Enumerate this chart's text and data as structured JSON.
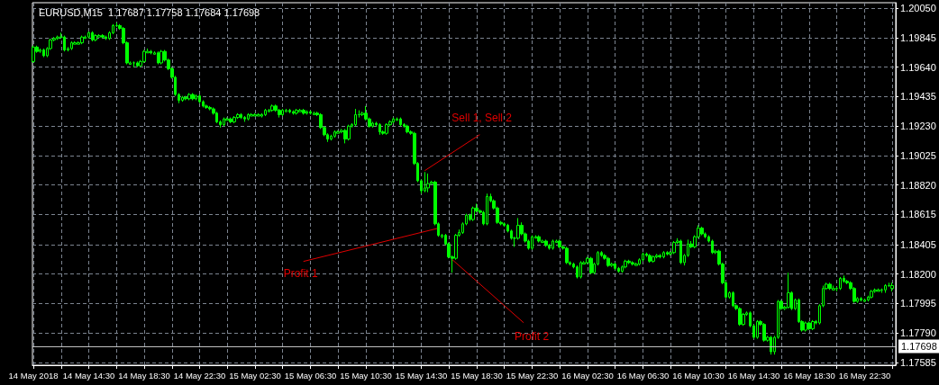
{
  "chart_data": {
    "type": "candlestick",
    "title": "EURUSD,M15  1.17687 1.17758 1.17684 1.17698",
    "color": "#00ff00",
    "grid": true,
    "xlim": [
      "2018-05-14T10:26",
      "2018-05-17T00:45"
    ],
    "xticks": [
      {
        "value": "2018-05-14T10:30",
        "label": "14 May 2018"
      },
      {
        "value": "2018-05-14T12:30",
        "label": null
      },
      {
        "value": "2018-05-14T14:30",
        "label": "14 May 14:30"
      },
      {
        "value": "2018-05-14T16:30",
        "label": null
      },
      {
        "value": "2018-05-14T18:30",
        "label": "14 May 18:30"
      },
      {
        "value": "2018-05-14T20:30",
        "label": null
      },
      {
        "value": "2018-05-14T22:30",
        "label": "14 May 22:30"
      },
      {
        "value": "2018-05-15T00:30",
        "label": null
      },
      {
        "value": "2018-05-15T02:30",
        "label": "15 May 02:30"
      },
      {
        "value": "2018-05-15T04:30",
        "label": null
      },
      {
        "value": "2018-05-15T06:30",
        "label": "15 May 06:30"
      },
      {
        "value": "2018-05-15T08:30",
        "label": null
      },
      {
        "value": "2018-05-15T10:30",
        "label": "15 May 10:30"
      },
      {
        "value": "2018-05-15T12:30",
        "label": null
      },
      {
        "value": "2018-05-15T14:30",
        "label": "15 May 14:30"
      },
      {
        "value": "2018-05-15T16:30",
        "label": null
      },
      {
        "value": "2018-05-15T18:30",
        "label": "15 May 18:30"
      },
      {
        "value": "2018-05-15T20:30",
        "label": null
      },
      {
        "value": "2018-05-15T22:30",
        "label": "15 May 22:30"
      },
      {
        "value": "2018-05-16T00:30",
        "label": null
      },
      {
        "value": "2018-05-16T02:30",
        "label": "16 May 02:30"
      },
      {
        "value": "2018-05-16T04:30",
        "label": null
      },
      {
        "value": "2018-05-16T06:30",
        "label": "16 May 06:30"
      },
      {
        "value": "2018-05-16T08:30",
        "label": null
      },
      {
        "value": "2018-05-16T10:30",
        "label": "16 May 10:30"
      },
      {
        "value": "2018-05-16T12:30",
        "label": null
      },
      {
        "value": "2018-05-16T14:30",
        "label": "16 May 14:30"
      },
      {
        "value": "2018-05-16T16:30",
        "label": null
      },
      {
        "value": "2018-05-16T18:30",
        "label": "16 May 18:30"
      },
      {
        "value": "2018-05-16T20:30",
        "label": null
      },
      {
        "value": "2018-05-16T22:30",
        "label": "16 May 22:30"
      },
      {
        "value": "2018-05-17T00:30",
        "label": null
      }
    ],
    "ylim": [
      1.17566,
      1.20089
    ],
    "yticks": [
      {
        "value": 1.2005,
        "label": "1.20050"
      },
      {
        "value": 1.19845,
        "label": "1.19845"
      },
      {
        "value": 1.1964,
        "label": "1.19640"
      },
      {
        "value": 1.19435,
        "label": "1.19435"
      },
      {
        "value": 1.1923,
        "label": "1.19230"
      },
      {
        "value": 1.19025,
        "label": "1.19025"
      },
      {
        "value": 1.1882,
        "label": "1.18820"
      },
      {
        "value": 1.18615,
        "label": "1.18615"
      },
      {
        "value": 1.18405,
        "label": "1.18405"
      },
      {
        "value": 1.182,
        "label": "1.18200"
      },
      {
        "value": 1.17995,
        "label": "1.17995"
      },
      {
        "value": 1.1779,
        "label": "1.17790"
      },
      {
        "value": 1.17585,
        "label": "1.17585"
      }
    ],
    "ref_lines": [
      {
        "axis": "y",
        "value": 1.17698,
        "label": "1.17698",
        "color": "#c0c0c0"
      }
    ],
    "annotations": [
      {
        "text": "Sell 1, Sell 2",
        "x": "2018-05-15T14:45",
        "y": 1.1892
      },
      {
        "text": "Profit 1",
        "x": "2018-05-15T15:45",
        "y": 1.1852
      },
      {
        "text": "Profit 2",
        "x": "2018-05-15T16:45",
        "y": 1.183
      }
    ],
    "x": [
      "2018-05-14T10:30",
      "2018-05-14T10:45",
      "2018-05-14T11:00",
      "2018-05-14T11:15",
      "2018-05-14T11:30",
      "2018-05-14T11:45",
      "2018-05-14T12:00",
      "2018-05-14T12:15",
      "2018-05-14T12:30",
      "2018-05-14T12:45",
      "2018-05-14T13:00",
      "2018-05-14T13:15",
      "2018-05-14T13:30",
      "2018-05-14T13:45",
      "2018-05-14T14:00",
      "2018-05-14T14:15",
      "2018-05-14T14:30",
      "2018-05-14T14:45",
      "2018-05-14T15:00",
      "2018-05-14T15:15",
      "2018-05-14T15:30",
      "2018-05-14T15:45",
      "2018-05-14T16:00",
      "2018-05-14T16:15",
      "2018-05-14T16:30",
      "2018-05-14T16:45",
      "2018-05-14T17:00",
      "2018-05-14T17:15",
      "2018-05-14T17:30",
      "2018-05-14T17:45",
      "2018-05-14T18:00",
      "2018-05-14T18:15",
      "2018-05-14T18:30",
      "2018-05-14T18:45",
      "2018-05-14T19:00",
      "2018-05-14T19:15",
      "2018-05-14T19:30",
      "2018-05-14T19:45",
      "2018-05-14T20:00",
      "2018-05-14T20:15",
      "2018-05-14T20:30",
      "2018-05-14T20:45",
      "2018-05-14T21:00",
      "2018-05-14T21:15",
      "2018-05-14T21:30",
      "2018-05-14T21:45",
      "2018-05-14T22:00",
      "2018-05-14T22:15",
      "2018-05-14T22:30",
      "2018-05-14T22:45",
      "2018-05-14T23:00",
      "2018-05-14T23:15",
      "2018-05-14T23:30",
      "2018-05-14T23:45",
      "2018-05-15T00:00",
      "2018-05-15T00:15",
      "2018-05-15T00:30",
      "2018-05-15T00:45",
      "2018-05-15T01:00",
      "2018-05-15T01:15",
      "2018-05-15T01:30",
      "2018-05-15T01:45",
      "2018-05-15T02:00",
      "2018-05-15T02:15",
      "2018-05-15T02:30",
      "2018-05-15T02:45",
      "2018-05-15T03:00",
      "2018-05-15T03:15",
      "2018-05-15T03:30",
      "2018-05-15T03:45",
      "2018-05-15T04:00",
      "2018-05-15T04:15",
      "2018-05-15T04:30",
      "2018-05-15T04:45",
      "2018-05-15T05:00",
      "2018-05-15T05:15",
      "2018-05-15T05:30",
      "2018-05-15T05:45",
      "2018-05-15T06:00",
      "2018-05-15T06:15",
      "2018-05-15T06:30",
      "2018-05-15T06:45",
      "2018-05-15T07:00",
      "2018-05-15T07:15",
      "2018-05-15T07:30",
      "2018-05-15T07:45",
      "2018-05-15T08:00",
      "2018-05-15T08:15",
      "2018-05-15T08:30",
      "2018-05-15T08:45",
      "2018-05-15T09:00",
      "2018-05-15T09:15",
      "2018-05-15T09:30",
      "2018-05-15T09:45",
      "2018-05-15T10:00",
      "2018-05-15T10:15",
      "2018-05-15T10:30",
      "2018-05-15T10:45",
      "2018-05-15T11:00",
      "2018-05-15T11:15",
      "2018-05-15T11:30",
      "2018-05-15T11:45",
      "2018-05-15T12:00",
      "2018-05-15T12:15",
      "2018-05-15T12:30",
      "2018-05-15T12:45",
      "2018-05-15T13:00",
      "2018-05-15T13:15",
      "2018-05-15T13:30",
      "2018-05-15T13:45",
      "2018-05-15T14:00",
      "2018-05-15T14:15",
      "2018-05-15T14:30",
      "2018-05-15T14:45",
      "2018-05-15T15:00",
      "2018-05-15T15:15",
      "2018-05-15T15:30",
      "2018-05-15T15:45",
      "2018-05-15T16:00",
      "2018-05-15T16:15",
      "2018-05-15T16:30",
      "2018-05-15T16:45",
      "2018-05-15T17:00",
      "2018-05-15T17:15",
      "2018-05-15T17:30",
      "2018-05-15T17:45",
      "2018-05-15T18:00",
      "2018-05-15T18:15",
      "2018-05-15T18:30",
      "2018-05-15T18:45",
      "2018-05-15T19:00",
      "2018-05-15T19:15",
      "2018-05-15T19:30",
      "2018-05-15T19:45",
      "2018-05-15T20:00",
      "2018-05-15T20:15",
      "2018-05-15T20:30",
      "2018-05-15T20:45",
      "2018-05-15T21:00",
      "2018-05-15T21:15",
      "2018-05-15T21:30",
      "2018-05-15T21:45",
      "2018-05-15T22:00",
      "2018-05-15T22:15",
      "2018-05-15T22:30",
      "2018-05-15T22:45",
      "2018-05-15T23:00",
      "2018-05-15T23:15",
      "2018-05-15T23:30",
      "2018-05-15T23:45",
      "2018-05-16T00:00",
      "2018-05-16T00:15",
      "2018-05-16T00:30",
      "2018-05-16T00:45",
      "2018-05-16T01:00",
      "2018-05-16T01:15",
      "2018-05-16T01:30",
      "2018-05-16T01:45",
      "2018-05-16T02:00",
      "2018-05-16T02:15",
      "2018-05-16T02:30",
      "2018-05-16T02:45",
      "2018-05-16T03:00",
      "2018-05-16T03:15",
      "2018-05-16T03:30",
      "2018-05-16T03:45",
      "2018-05-16T04:00",
      "2018-05-16T04:15",
      "2018-05-16T04:30",
      "2018-05-16T04:45",
      "2018-05-16T05:00",
      "2018-05-16T05:15",
      "2018-05-16T05:30",
      "2018-05-16T05:45",
      "2018-05-16T06:00",
      "2018-05-16T06:15",
      "2018-05-16T06:30",
      "2018-05-16T06:45",
      "2018-05-16T07:00",
      "2018-05-16T07:15",
      "2018-05-16T07:30",
      "2018-05-16T07:45",
      "2018-05-16T08:00",
      "2018-05-16T08:15",
      "2018-05-16T08:30",
      "2018-05-16T08:45",
      "2018-05-16T09:00",
      "2018-05-16T09:15",
      "2018-05-16T09:30",
      "2018-05-16T09:45",
      "2018-05-16T10:00",
      "2018-05-16T10:15",
      "2018-05-16T10:30",
      "2018-05-16T10:45",
      "2018-05-16T11:00",
      "2018-05-16T11:15",
      "2018-05-16T11:30",
      "2018-05-16T11:45",
      "2018-05-16T12:00",
      "2018-05-16T12:15",
      "2018-05-16T12:30",
      "2018-05-16T12:45",
      "2018-05-16T13:00",
      "2018-05-16T13:15",
      "2018-05-16T13:30",
      "2018-05-16T13:45",
      "2018-05-16T14:00",
      "2018-05-16T14:15",
      "2018-05-16T14:30",
      "2018-05-16T14:45",
      "2018-05-16T15:00",
      "2018-05-16T15:15",
      "2018-05-16T15:30",
      "2018-05-16T15:45",
      "2018-05-16T16:00",
      "2018-05-16T16:15",
      "2018-05-16T16:30",
      "2018-05-16T16:45",
      "2018-05-16T17:00",
      "2018-05-16T17:15",
      "2018-05-16T17:30",
      "2018-05-16T17:45",
      "2018-05-16T18:00",
      "2018-05-16T18:15",
      "2018-05-16T18:30",
      "2018-05-16T18:45",
      "2018-05-16T19:00",
      "2018-05-16T19:15",
      "2018-05-16T19:30",
      "2018-05-16T19:45",
      "2018-05-16T20:00",
      "2018-05-16T20:15",
      "2018-05-16T20:30",
      "2018-05-16T20:45",
      "2018-05-16T21:00",
      "2018-05-16T21:15",
      "2018-05-16T21:30",
      "2018-05-16T21:45",
      "2018-05-16T22:00",
      "2018-05-16T22:15",
      "2018-05-16T22:30",
      "2018-05-16T22:45",
      "2018-05-16T23:00",
      "2018-05-16T23:15",
      "2018-05-16T23:30",
      "2018-05-16T23:45",
      "2018-05-17T00:00",
      "2018-05-17T00:15",
      "2018-05-17T00:30"
    ],
    "ohlc": [
      [
        1.1968,
        1.1979,
        1.1967,
        1.1978
      ],
      [
        1.1978,
        1.1979,
        1.1974,
        1.1975
      ],
      [
        1.1975,
        1.1977,
        1.1974,
        1.1976
      ],
      [
        1.1976,
        1.1977,
        1.1971,
        1.1972
      ],
      [
        1.1972,
        1.1978,
        1.1971,
        1.1977
      ],
      [
        1.1977,
        1.1984,
        1.1976,
        1.1983
      ],
      [
        1.1983,
        1.1985,
        1.1982,
        1.1984
      ],
      [
        1.1984,
        1.1986,
        1.1983,
        1.1985
      ],
      [
        1.1985,
        1.1988,
        1.1984,
        1.1985
      ],
      [
        1.1985,
        1.1986,
        1.1975,
        1.1976
      ],
      [
        1.1976,
        1.1978,
        1.1975,
        1.1977
      ],
      [
        1.1977,
        1.1982,
        1.1976,
        1.1981
      ],
      [
        1.198,
        1.1982,
        1.198,
        1.1981
      ],
      [
        1.198,
        1.1982,
        1.198,
        1.1981
      ],
      [
        1.1981,
        1.1986,
        1.198,
        1.1985
      ],
      [
        1.1984,
        1.1986,
        1.1984,
        1.1985
      ],
      [
        1.1985,
        1.1989,
        1.1984,
        1.1988
      ],
      [
        1.1988,
        1.1989,
        1.1982,
        1.1983
      ],
      [
        1.1983,
        1.1987,
        1.1982,
        1.1986
      ],
      [
        1.1985,
        1.1987,
        1.1985,
        1.1986
      ],
      [
        1.1986,
        1.1987,
        1.1984,
        1.1985
      ],
      [
        1.1985,
        1.1986,
        1.1983,
        1.1984
      ],
      [
        1.1984,
        1.1989,
        1.1983,
        1.1988
      ],
      [
        1.1988,
        1.1994,
        1.1987,
        1.1993
      ],
      [
        1.1993,
        1.1995,
        1.1992,
        1.1993
      ],
      [
        1.1993,
        1.1994,
        1.199,
        1.1991
      ],
      [
        1.1991,
        1.1992,
        1.198,
        1.1981
      ],
      [
        1.1981,
        1.1982,
        1.1966,
        1.1967
      ],
      [
        1.1966,
        1.1968,
        1.1966,
        1.1967
      ],
      [
        1.1967,
        1.1968,
        1.1964,
        1.1967
      ],
      [
        1.1967,
        1.1968,
        1.1964,
        1.1965
      ],
      [
        1.1965,
        1.1969,
        1.1964,
        1.1968
      ],
      [
        1.1968,
        1.1976,
        1.1967,
        1.1975
      ],
      [
        1.1974,
        1.1977,
        1.1974,
        1.1975
      ],
      [
        1.1975,
        1.1976,
        1.1973,
        1.1974
      ],
      [
        1.1973,
        1.1975,
        1.1973,
        1.1974
      ],
      [
        1.1974,
        1.1975,
        1.1966,
        1.1967
      ],
      [
        1.1967,
        1.1976,
        1.1966,
        1.1975
      ],
      [
        1.1975,
        1.1976,
        1.1968,
        1.1969
      ],
      [
        1.1969,
        1.197,
        1.1962,
        1.1963
      ],
      [
        1.1963,
        1.1964,
        1.1956,
        1.1957
      ],
      [
        1.1957,
        1.1958,
        1.1944,
        1.1945
      ],
      [
        1.1945,
        1.1946,
        1.1939,
        1.1941
      ],
      [
        1.1941,
        1.1944,
        1.194,
        1.1943
      ],
      [
        1.1943,
        1.1944,
        1.1941,
        1.1942
      ],
      [
        1.1942,
        1.1946,
        1.1941,
        1.1945
      ],
      [
        1.1945,
        1.1946,
        1.1941,
        1.1942
      ],
      [
        1.1942,
        1.1945,
        1.1941,
        1.1944
      ],
      [
        1.1944,
        1.1945,
        1.1939,
        1.194
      ],
      [
        1.194,
        1.1941,
        1.1936,
        1.1937
      ],
      [
        1.1937,
        1.1938,
        1.1935,
        1.1936
      ],
      [
        1.1936,
        1.1937,
        1.1934,
        1.1935
      ],
      [
        1.1935,
        1.1936,
        1.1931,
        1.1932
      ],
      [
        1.1932,
        1.1933,
        1.1925,
        1.1926
      ],
      [
        1.1926,
        1.1927,
        1.1922,
        1.1924
      ],
      [
        1.1924,
        1.1929,
        1.1923,
        1.1928
      ],
      [
        1.1927,
        1.1929,
        1.1927,
        1.1928
      ],
      [
        1.1928,
        1.1929,
        1.1925,
        1.1926
      ],
      [
        1.1926,
        1.193,
        1.1925,
        1.1929
      ],
      [
        1.1929,
        1.1932,
        1.1928,
        1.1931
      ],
      [
        1.1931,
        1.1932,
        1.1928,
        1.1929
      ],
      [
        1.1929,
        1.193,
        1.1926,
        1.1928
      ],
      [
        1.1928,
        1.1932,
        1.1927,
        1.1931
      ],
      [
        1.193,
        1.1932,
        1.193,
        1.1931
      ],
      [
        1.193,
        1.1932,
        1.193,
        1.1931
      ],
      [
        1.193,
        1.1932,
        1.193,
        1.1931
      ],
      [
        1.193,
        1.1932,
        1.1929,
        1.1931
      ],
      [
        1.1931,
        1.1935,
        1.193,
        1.1934
      ],
      [
        1.1933,
        1.1935,
        1.1933,
        1.1934
      ],
      [
        1.1934,
        1.1938,
        1.1933,
        1.1937
      ],
      [
        1.1937,
        1.1938,
        1.1933,
        1.1934
      ],
      [
        1.1934,
        1.1935,
        1.1929,
        1.1931
      ],
      [
        1.1931,
        1.1935,
        1.193,
        1.1934
      ],
      [
        1.1933,
        1.1935,
        1.1933,
        1.1934
      ],
      [
        1.1934,
        1.1935,
        1.1932,
        1.1933
      ],
      [
        1.1933,
        1.1934,
        1.1931,
        1.1932
      ],
      [
        1.1932,
        1.1935,
        1.1931,
        1.1934
      ],
      [
        1.1933,
        1.1935,
        1.1933,
        1.1934
      ],
      [
        1.1934,
        1.1935,
        1.1931,
        1.1932
      ],
      [
        1.1932,
        1.1934,
        1.1931,
        1.1933
      ],
      [
        1.1933,
        1.1934,
        1.1931,
        1.1932
      ],
      [
        1.1931,
        1.1933,
        1.1931,
        1.1932
      ],
      [
        1.1932,
        1.1933,
        1.193,
        1.1931
      ],
      [
        1.1931,
        1.1932,
        1.1921,
        1.1922
      ],
      [
        1.1922,
        1.1923,
        1.1916,
        1.1917
      ],
      [
        1.1917,
        1.1918,
        1.1912,
        1.1914
      ],
      [
        1.1914,
        1.1917,
        1.1913,
        1.1916
      ],
      [
        1.1916,
        1.192,
        1.1915,
        1.1919
      ],
      [
        1.1918,
        1.192,
        1.1918,
        1.1919
      ],
      [
        1.1919,
        1.1921,
        1.1918,
        1.192
      ],
      [
        1.192,
        1.1921,
        1.1911,
        1.1914
      ],
      [
        1.1914,
        1.1924,
        1.1913,
        1.1923
      ],
      [
        1.1923,
        1.1925,
        1.1922,
        1.1924
      ],
      [
        1.1924,
        1.1935,
        1.1923,
        1.1931
      ],
      [
        1.1931,
        1.1934,
        1.1929,
        1.1931
      ],
      [
        1.1931,
        1.1933,
        1.193,
        1.1932
      ],
      [
        1.1932,
        1.1937,
        1.1927,
        1.1928
      ],
      [
        1.1928,
        1.1929,
        1.1922,
        1.1923
      ],
      [
        1.1923,
        1.1926,
        1.1922,
        1.1925
      ],
      [
        1.1925,
        1.1926,
        1.1923,
        1.1924
      ],
      [
        1.1924,
        1.1925,
        1.1917,
        1.1919
      ],
      [
        1.1919,
        1.192,
        1.1917,
        1.1918
      ],
      [
        1.1918,
        1.1925,
        1.1917,
        1.1924
      ],
      [
        1.1924,
        1.1927,
        1.1923,
        1.1926
      ],
      [
        1.1926,
        1.1929,
        1.1925,
        1.1928
      ],
      [
        1.1927,
        1.1929,
        1.1927,
        1.1928
      ],
      [
        1.1928,
        1.1929,
        1.1923,
        1.1924
      ],
      [
        1.1924,
        1.1925,
        1.1922,
        1.1923
      ],
      [
        1.1923,
        1.1924,
        1.1918,
        1.1919
      ],
      [
        1.1919,
        1.192,
        1.1917,
        1.1918
      ],
      [
        1.1918,
        1.1919,
        1.1896,
        1.1897
      ],
      [
        1.1897,
        1.1898,
        1.1884,
        1.1885
      ],
      [
        1.1885,
        1.1886,
        1.1876,
        1.1878
      ],
      [
        1.1878,
        1.1891,
        1.1877,
        1.188
      ],
      [
        1.188,
        1.189,
        1.1877,
        1.1883
      ],
      [
        1.1883,
        1.1885,
        1.1882,
        1.1884
      ],
      [
        1.1884,
        1.1885,
        1.1854,
        1.1855
      ],
      [
        1.1855,
        1.1856,
        1.1846,
        1.1847
      ],
      [
        1.1846,
        1.1848,
        1.1845,
        1.1847
      ],
      [
        1.1847,
        1.1848,
        1.184,
        1.1841
      ],
      [
        1.1841,
        1.1842,
        1.1831,
        1.1832
      ],
      [
        1.1832,
        1.1833,
        1.1821,
        1.1831
      ],
      [
        1.1831,
        1.1848,
        1.183,
        1.1847
      ],
      [
        1.1847,
        1.1851,
        1.1846,
        1.1849
      ],
      [
        1.1849,
        1.1856,
        1.1848,
        1.1855
      ],
      [
        1.1855,
        1.1862,
        1.1854,
        1.1861
      ],
      [
        1.1861,
        1.1862,
        1.1857,
        1.1858
      ],
      [
        1.1858,
        1.1867,
        1.1857,
        1.1866
      ],
      [
        1.1866,
        1.1869,
        1.1863,
        1.1864
      ],
      [
        1.1864,
        1.1865,
        1.1862,
        1.1863
      ],
      [
        1.1863,
        1.1864,
        1.1854,
        1.1855
      ],
      [
        1.1855,
        1.1876,
        1.1854,
        1.1874
      ],
      [
        1.1874,
        1.1876,
        1.187,
        1.1871
      ],
      [
        1.1871,
        1.1872,
        1.1865,
        1.1866
      ],
      [
        1.1866,
        1.1867,
        1.1855,
        1.1856
      ],
      [
        1.1856,
        1.1857,
        1.1854,
        1.1855
      ],
      [
        1.1855,
        1.1856,
        1.1853,
        1.1854
      ],
      [
        1.1854,
        1.1855,
        1.1849,
        1.185
      ],
      [
        1.185,
        1.1851,
        1.1844,
        1.1845
      ],
      [
        1.1845,
        1.1846,
        1.1839,
        1.1845
      ],
      [
        1.1845,
        1.1859,
        1.1844,
        1.1854
      ],
      [
        1.1854,
        1.1856,
        1.1847,
        1.1848
      ],
      [
        1.1848,
        1.1849,
        1.1842,
        1.1843
      ],
      [
        1.1843,
        1.1844,
        1.1837,
        1.1838
      ],
      [
        1.1838,
        1.1847,
        1.1837,
        1.1846
      ],
      [
        1.1845,
        1.1847,
        1.1845,
        1.1846
      ],
      [
        1.1846,
        1.1847,
        1.1842,
        1.1843
      ],
      [
        1.1842,
        1.1844,
        1.1842,
        1.1843
      ],
      [
        1.1843,
        1.1844,
        1.1839,
        1.184
      ],
      [
        1.184,
        1.1841,
        1.1837,
        1.1838
      ],
      [
        1.1838,
        1.1844,
        1.1837,
        1.1843
      ],
      [
        1.1842,
        1.1844,
        1.1842,
        1.1843
      ],
      [
        1.1843,
        1.1844,
        1.1838,
        1.1839
      ],
      [
        1.1839,
        1.184,
        1.1837,
        1.1838
      ],
      [
        1.1838,
        1.1839,
        1.1827,
        1.1828
      ],
      [
        1.1828,
        1.1829,
        1.1826,
        1.1827
      ],
      [
        1.1827,
        1.1828,
        1.1824,
        1.1825
      ],
      [
        1.1825,
        1.1826,
        1.1817,
        1.1818
      ],
      [
        1.1818,
        1.1829,
        1.1817,
        1.1828
      ],
      [
        1.1827,
        1.1829,
        1.1827,
        1.1828
      ],
      [
        1.1828,
        1.1832,
        1.1827,
        1.1831
      ],
      [
        1.1831,
        1.1832,
        1.182,
        1.1821
      ],
      [
        1.1821,
        1.1828,
        1.182,
        1.1827
      ],
      [
        1.1827,
        1.1836,
        1.1826,
        1.1835
      ],
      [
        1.1835,
        1.1836,
        1.1832,
        1.1833
      ],
      [
        1.1833,
        1.1834,
        1.183,
        1.1831
      ],
      [
        1.1831,
        1.1832,
        1.1825,
        1.1826
      ],
      [
        1.1826,
        1.1828,
        1.1825,
        1.1827
      ],
      [
        1.1827,
        1.1828,
        1.1823,
        1.1824
      ],
      [
        1.1824,
        1.1825,
        1.1821,
        1.1822
      ],
      [
        1.1822,
        1.1826,
        1.1821,
        1.1825
      ],
      [
        1.1825,
        1.183,
        1.1824,
        1.1829
      ],
      [
        1.1829,
        1.183,
        1.1827,
        1.1828
      ],
      [
        1.1828,
        1.1829,
        1.1826,
        1.1827
      ],
      [
        1.1826,
        1.1828,
        1.1826,
        1.1827
      ],
      [
        1.1827,
        1.1831,
        1.1826,
        1.183
      ],
      [
        1.183,
        1.1835,
        1.1829,
        1.1834
      ],
      [
        1.1834,
        1.1835,
        1.1832,
        1.1833
      ],
      [
        1.1833,
        1.1834,
        1.1828,
        1.1829
      ],
      [
        1.1829,
        1.1833,
        1.1828,
        1.1832
      ],
      [
        1.1832,
        1.1834,
        1.1831,
        1.1833
      ],
      [
        1.1833,
        1.1834,
        1.1831,
        1.1832
      ],
      [
        1.1832,
        1.1836,
        1.1831,
        1.1835
      ],
      [
        1.1835,
        1.1836,
        1.1833,
        1.1834
      ],
      [
        1.1834,
        1.1836,
        1.1833,
        1.1835
      ],
      [
        1.1835,
        1.1843,
        1.1834,
        1.1842
      ],
      [
        1.1842,
        1.1845,
        1.1841,
        1.1843
      ],
      [
        1.1843,
        1.1844,
        1.1827,
        1.1828
      ],
      [
        1.1828,
        1.1834,
        1.1826,
        1.1833
      ],
      [
        1.1833,
        1.1844,
        1.1832,
        1.1841
      ],
      [
        1.1841,
        1.1843,
        1.1838,
        1.1839
      ],
      [
        1.1839,
        1.1847,
        1.1838,
        1.1846
      ],
      [
        1.1846,
        1.1854,
        1.1845,
        1.1852
      ],
      [
        1.1852,
        1.1853,
        1.1847,
        1.1848
      ],
      [
        1.1848,
        1.1849,
        1.1845,
        1.1846
      ],
      [
        1.1846,
        1.1847,
        1.1842,
        1.1843
      ],
      [
        1.1843,
        1.1844,
        1.1834,
        1.1835
      ],
      [
        1.1835,
        1.1837,
        1.1834,
        1.1836
      ],
      [
        1.1836,
        1.1837,
        1.1826,
        1.1827
      ],
      [
        1.1827,
        1.1828,
        1.1813,
        1.1814
      ],
      [
        1.1814,
        1.1815,
        1.1803,
        1.1804
      ],
      [
        1.1804,
        1.1808,
        1.1803,
        1.1807
      ],
      [
        1.1807,
        1.1808,
        1.1797,
        1.1798
      ],
      [
        1.1798,
        1.1799,
        1.1795,
        1.1796
      ],
      [
        1.1796,
        1.1797,
        1.1784,
        1.1785
      ],
      [
        1.1785,
        1.1793,
        1.1784,
        1.1792
      ],
      [
        1.1792,
        1.1794,
        1.1791,
        1.1793
      ],
      [
        1.1793,
        1.1794,
        1.1783,
        1.1784
      ],
      [
        1.1784,
        1.1785,
        1.1775,
        1.1776
      ],
      [
        1.1776,
        1.1788,
        1.1775,
        1.1787
      ],
      [
        1.1787,
        1.1788,
        1.1784,
        1.1785
      ],
      [
        1.1785,
        1.1786,
        1.1773,
        1.1774
      ],
      [
        1.1774,
        1.1777,
        1.1773,
        1.1776
      ],
      [
        1.1776,
        1.1777,
        1.1764,
        1.1766
      ],
      [
        1.1766,
        1.1777,
        1.1764,
        1.1776
      ],
      [
        1.1776,
        1.1802,
        1.1775,
        1.1801
      ],
      [
        1.1801,
        1.1802,
        1.1795,
        1.1796
      ],
      [
        1.1796,
        1.1798,
        1.1795,
        1.1797
      ],
      [
        1.1797,
        1.1821,
        1.1796,
        1.1807
      ],
      [
        1.1807,
        1.1808,
        1.1795,
        1.1796
      ],
      [
        1.1796,
        1.1803,
        1.1795,
        1.1802
      ],
      [
        1.1802,
        1.1803,
        1.1786,
        1.1787
      ],
      [
        1.1787,
        1.1788,
        1.178,
        1.1781
      ],
      [
        1.1781,
        1.1787,
        1.178,
        1.1786
      ],
      [
        1.1786,
        1.1787,
        1.1781,
        1.1782
      ],
      [
        1.1782,
        1.1788,
        1.1781,
        1.1787
      ],
      [
        1.1787,
        1.1788,
        1.1785,
        1.1786
      ],
      [
        1.1786,
        1.1799,
        1.1785,
        1.1798
      ],
      [
        1.1798,
        1.1812,
        1.1797,
        1.181
      ],
      [
        1.181,
        1.1814,
        1.1809,
        1.1813
      ],
      [
        1.1813,
        1.1814,
        1.1809,
        1.181
      ],
      [
        1.1809,
        1.1812,
        1.1809,
        1.181
      ],
      [
        1.181,
        1.1811,
        1.1808,
        1.181
      ],
      [
        1.181,
        1.1818,
        1.1809,
        1.1817
      ],
      [
        1.1817,
        1.1819,
        1.1814,
        1.1815
      ],
      [
        1.1815,
        1.1816,
        1.1813,
        1.1814
      ],
      [
        1.1814,
        1.1815,
        1.1809,
        1.181
      ],
      [
        1.181,
        1.1811,
        1.18,
        1.1801
      ],
      [
        1.1801,
        1.1804,
        1.18,
        1.1803
      ],
      [
        1.1803,
        1.1804,
        1.1801,
        1.1802
      ],
      [
        1.1801,
        1.1803,
        1.1801,
        1.1802
      ],
      [
        1.1802,
        1.1805,
        1.1801,
        1.1804
      ],
      [
        1.1804,
        1.1809,
        1.1803,
        1.1808
      ],
      [
        1.1808,
        1.181,
        1.1807,
        1.1809
      ],
      [
        1.1808,
        1.181,
        1.1808,
        1.1809
      ],
      [
        1.1809,
        1.181,
        1.1807,
        1.1809
      ],
      [
        1.1809,
        1.1813,
        1.1807,
        1.1812
      ],
      [
        1.1812,
        1.1814,
        1.1811,
        1.1812
      ],
      [
        1.181,
        1.1814,
        1.1808,
        1.1812
      ]
    ]
  }
}
